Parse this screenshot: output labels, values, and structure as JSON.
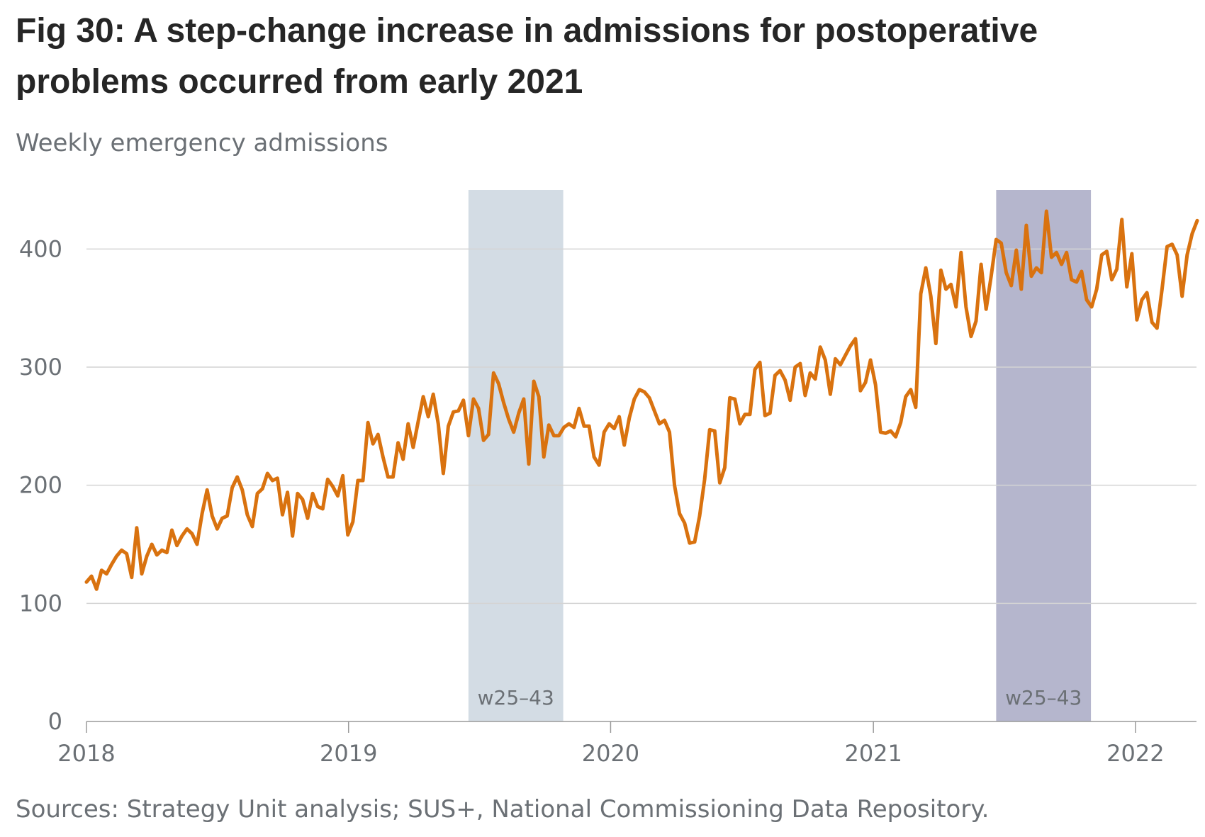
{
  "title": "Fig 30: A step-change increase in admissions for postoperative problems occurred from early 2021",
  "subtitle": "Weekly emergency admissions",
  "source": "Sources: Strategy Unit analysis; SUS+, National Commissioning Data Repository.",
  "chart_data": {
    "type": "line",
    "title": "Fig 30: A step-change increase in admissions for postoperative problems occurred from early 2021",
    "ylabel": "Weekly emergency admissions",
    "ylim": [
      0,
      450
    ],
    "yticks": [
      0,
      100,
      200,
      300,
      400
    ],
    "xlim": [
      "2018-01-01",
      "2022-03-27"
    ],
    "xticks": [
      "2018",
      "2019",
      "2020",
      "2021",
      "2022"
    ],
    "grid": "horizontal",
    "line_color": "#d9720f",
    "shaded_periods": [
      {
        "label": "w25–43",
        "start": "2019-06-17",
        "end": "2019-10-27",
        "color": "#d3dce4"
      },
      {
        "label": "w25–43",
        "start": "2021-06-21",
        "end": "2021-10-31",
        "color": "#b5b6cd"
      }
    ],
    "series": [
      {
        "x_start": "2018-01-01",
        "interval_days": 7,
        "values": [
          118,
          123,
          112,
          128,
          125,
          133,
          140,
          145,
          142,
          122,
          164,
          125,
          140,
          150,
          141,
          145,
          143,
          162,
          149,
          157,
          163,
          159,
          150,
          176,
          196,
          174,
          163,
          172,
          174,
          198,
          207,
          196,
          175,
          165,
          193,
          197,
          210,
          204,
          206,
          175,
          194,
          157,
          193,
          188,
          172,
          193,
          182,
          180,
          205,
          199,
          191,
          208,
          158,
          169,
          204,
          204,
          253,
          235,
          243,
          224,
          207,
          207,
          236,
          222,
          252,
          232,
          254,
          275,
          258,
          277,
          252,
          210,
          250,
          262,
          263,
          272,
          242,
          273,
          265,
          238,
          243,
          295,
          286,
          270,
          256,
          245,
          261,
          273,
          218,
          288,
          275,
          224,
          251,
          242,
          242,
          249,
          252,
          249,
          265,
          250,
          250,
          224,
          217,
          245,
          252,
          248,
          258,
          234,
          257,
          273,
          281,
          279,
          274,
          263,
          252,
          255,
          245,
          200,
          176,
          168,
          151,
          152,
          174,
          205,
          247,
          246,
          202,
          215,
          274,
          273,
          252,
          260,
          260,
          298,
          304,
          259,
          261,
          293,
          297,
          289,
          272,
          300,
          303,
          276,
          295,
          290,
          317,
          306,
          277,
          307,
          302,
          310,
          318,
          324,
          280,
          287,
          306,
          285,
          245,
          244,
          246,
          241,
          253,
          275,
          281,
          266,
          362,
          384,
          360,
          320,
          382,
          366,
          370,
          351,
          397,
          351,
          326,
          339,
          387,
          349,
          377,
          408,
          405,
          380,
          369,
          399,
          366,
          420,
          377,
          384,
          380,
          432,
          393,
          397,
          387,
          397,
          374,
          372,
          381,
          357,
          351,
          366,
          395,
          398,
          374,
          383,
          425,
          368,
          396,
          340,
          357,
          363,
          338,
          333,
          366,
          402,
          404,
          395,
          360,
          395,
          413,
          424
        ]
      }
    ]
  }
}
